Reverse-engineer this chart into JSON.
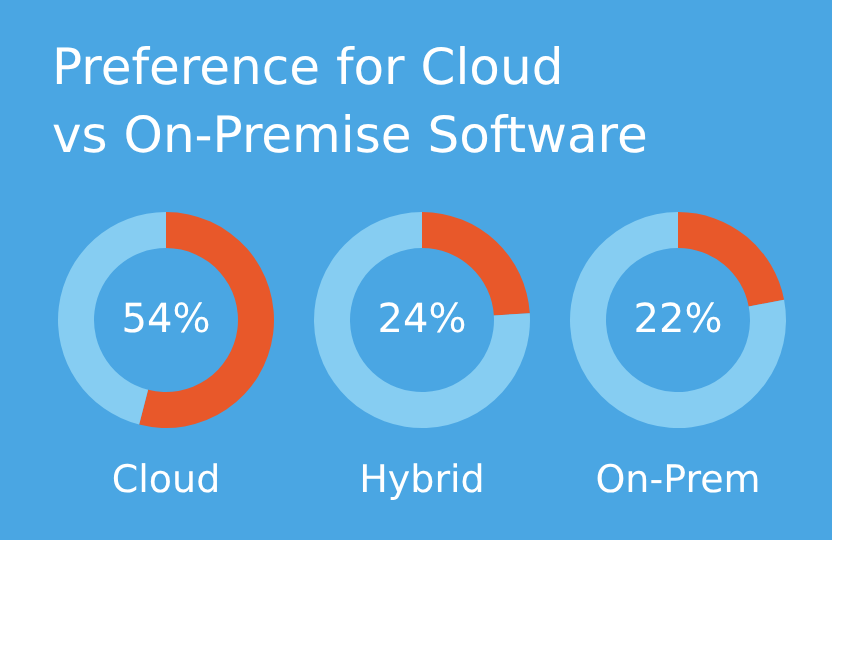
{
  "chart_data": [
    {
      "type": "donut",
      "title": "Preference for Cloud vs On-Premise Software",
      "xlabel": "Cloud",
      "categories": [
        null,
        null
      ],
      "values": [
        54,
        46
      ],
      "colors": [
        "#e8582a",
        "#86cdf2"
      ],
      "value_labels": [
        "54%",
        null
      ]
    },
    {
      "type": "donut",
      "xlabel": "Hybrid",
      "categories": [
        null,
        null
      ],
      "values": [
        24,
        76
      ],
      "colors": [
        "#e8582a",
        "#86cdf2"
      ],
      "value_labels": [
        "24%",
        null
      ]
    },
    {
      "type": "donut",
      "xlabel": "On-Prem",
      "categories": [
        null,
        null
      ],
      "values": [
        22,
        78
      ],
      "colors": [
        "#e8582a",
        "#86cdf2"
      ],
      "value_labels": [
        "22%",
        null
      ]
    }
  ]
}
